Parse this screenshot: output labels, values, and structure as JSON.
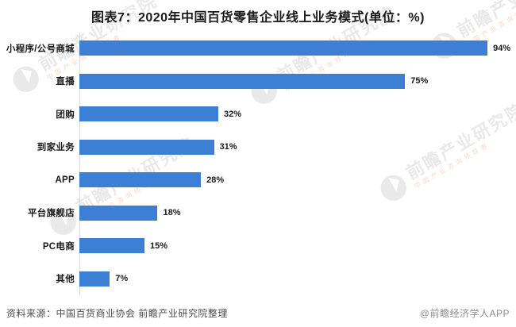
{
  "chart_data": {
    "type": "bar",
    "orientation": "horizontal",
    "title": "图表7：2020年中国百货零售企业线上业务模式(单位：%)",
    "unit": "%",
    "categories": [
      "小程序/公号商城",
      "直播",
      "团购",
      "到家业务",
      "APP",
      "平台旗舰店",
      "PC电商",
      "其他"
    ],
    "values": [
      94,
      75,
      32,
      31,
      28,
      18,
      15,
      7
    ],
    "value_labels": [
      "94%",
      "75%",
      "32%",
      "31%",
      "28%",
      "18%",
      "15%",
      "7%"
    ],
    "xlim": [
      0,
      100
    ],
    "grid": false,
    "legend": false,
    "bar_color": "#3E7FD6",
    "axis_line_color": "#d9d9d9",
    "label_color": "#1a1a1a"
  },
  "footer": {
    "source": "资料来源：中国百货商业协会 前瞻产业研究院整理",
    "credit": "@前瞻经济学人APP"
  },
  "watermark": {
    "text": "前瞻产业研究院",
    "subtext": "中国产业咨询领导者"
  }
}
